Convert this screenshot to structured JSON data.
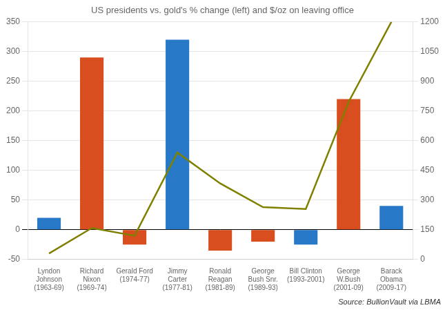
{
  "chart_data": {
    "type": "bar",
    "title": "US presidents vs. gold's % change (left) and $/oz on leaving office",
    "annotation": "Source: BullionVault via LBMA",
    "categories": [
      "Lyndon\nJohnson\n(1963-69)",
      "Richard\nNixon\n(1969-74)",
      "Gerald Ford\n(1974-77)",
      "Jimmy\nCarter\n(1977-81)",
      "Ronald\nReagan\n(1981-89)",
      "George\nBush Snr.\n(1989-93)",
      "Bill Clinton\n(1993-2001)",
      "George\nW.Bush\n(2001-09)",
      "Barack\nObama\n(2009-17)"
    ],
    "series": [
      {
        "type": "bar",
        "values": [
          20,
          290,
          -25,
          320,
          -35,
          -20,
          -25,
          220,
          40
        ],
        "colors": [
          "#2878c8",
          "#d94e1f",
          "#d94e1f",
          "#2878c8",
          "#d94e1f",
          "#d94e1f",
          "#2878c8",
          "#d94e1f",
          "#2878c8"
        ]
      },
      {
        "type": "line",
        "color": "#808000",
        "values": [
          -40,
          3,
          -10,
          130,
          78,
          38,
          35,
          215,
          350
        ]
      }
    ],
    "ylim": [
      -50,
      350
    ],
    "yticks": [
      -50,
      0,
      50,
      100,
      150,
      200,
      250,
      300,
      350
    ],
    "y2lim": [
      0,
      1200
    ],
    "y2ticks": [
      0,
      150,
      300,
      450,
      600,
      750,
      900,
      1050,
      1200
    ],
    "grid": true
  }
}
